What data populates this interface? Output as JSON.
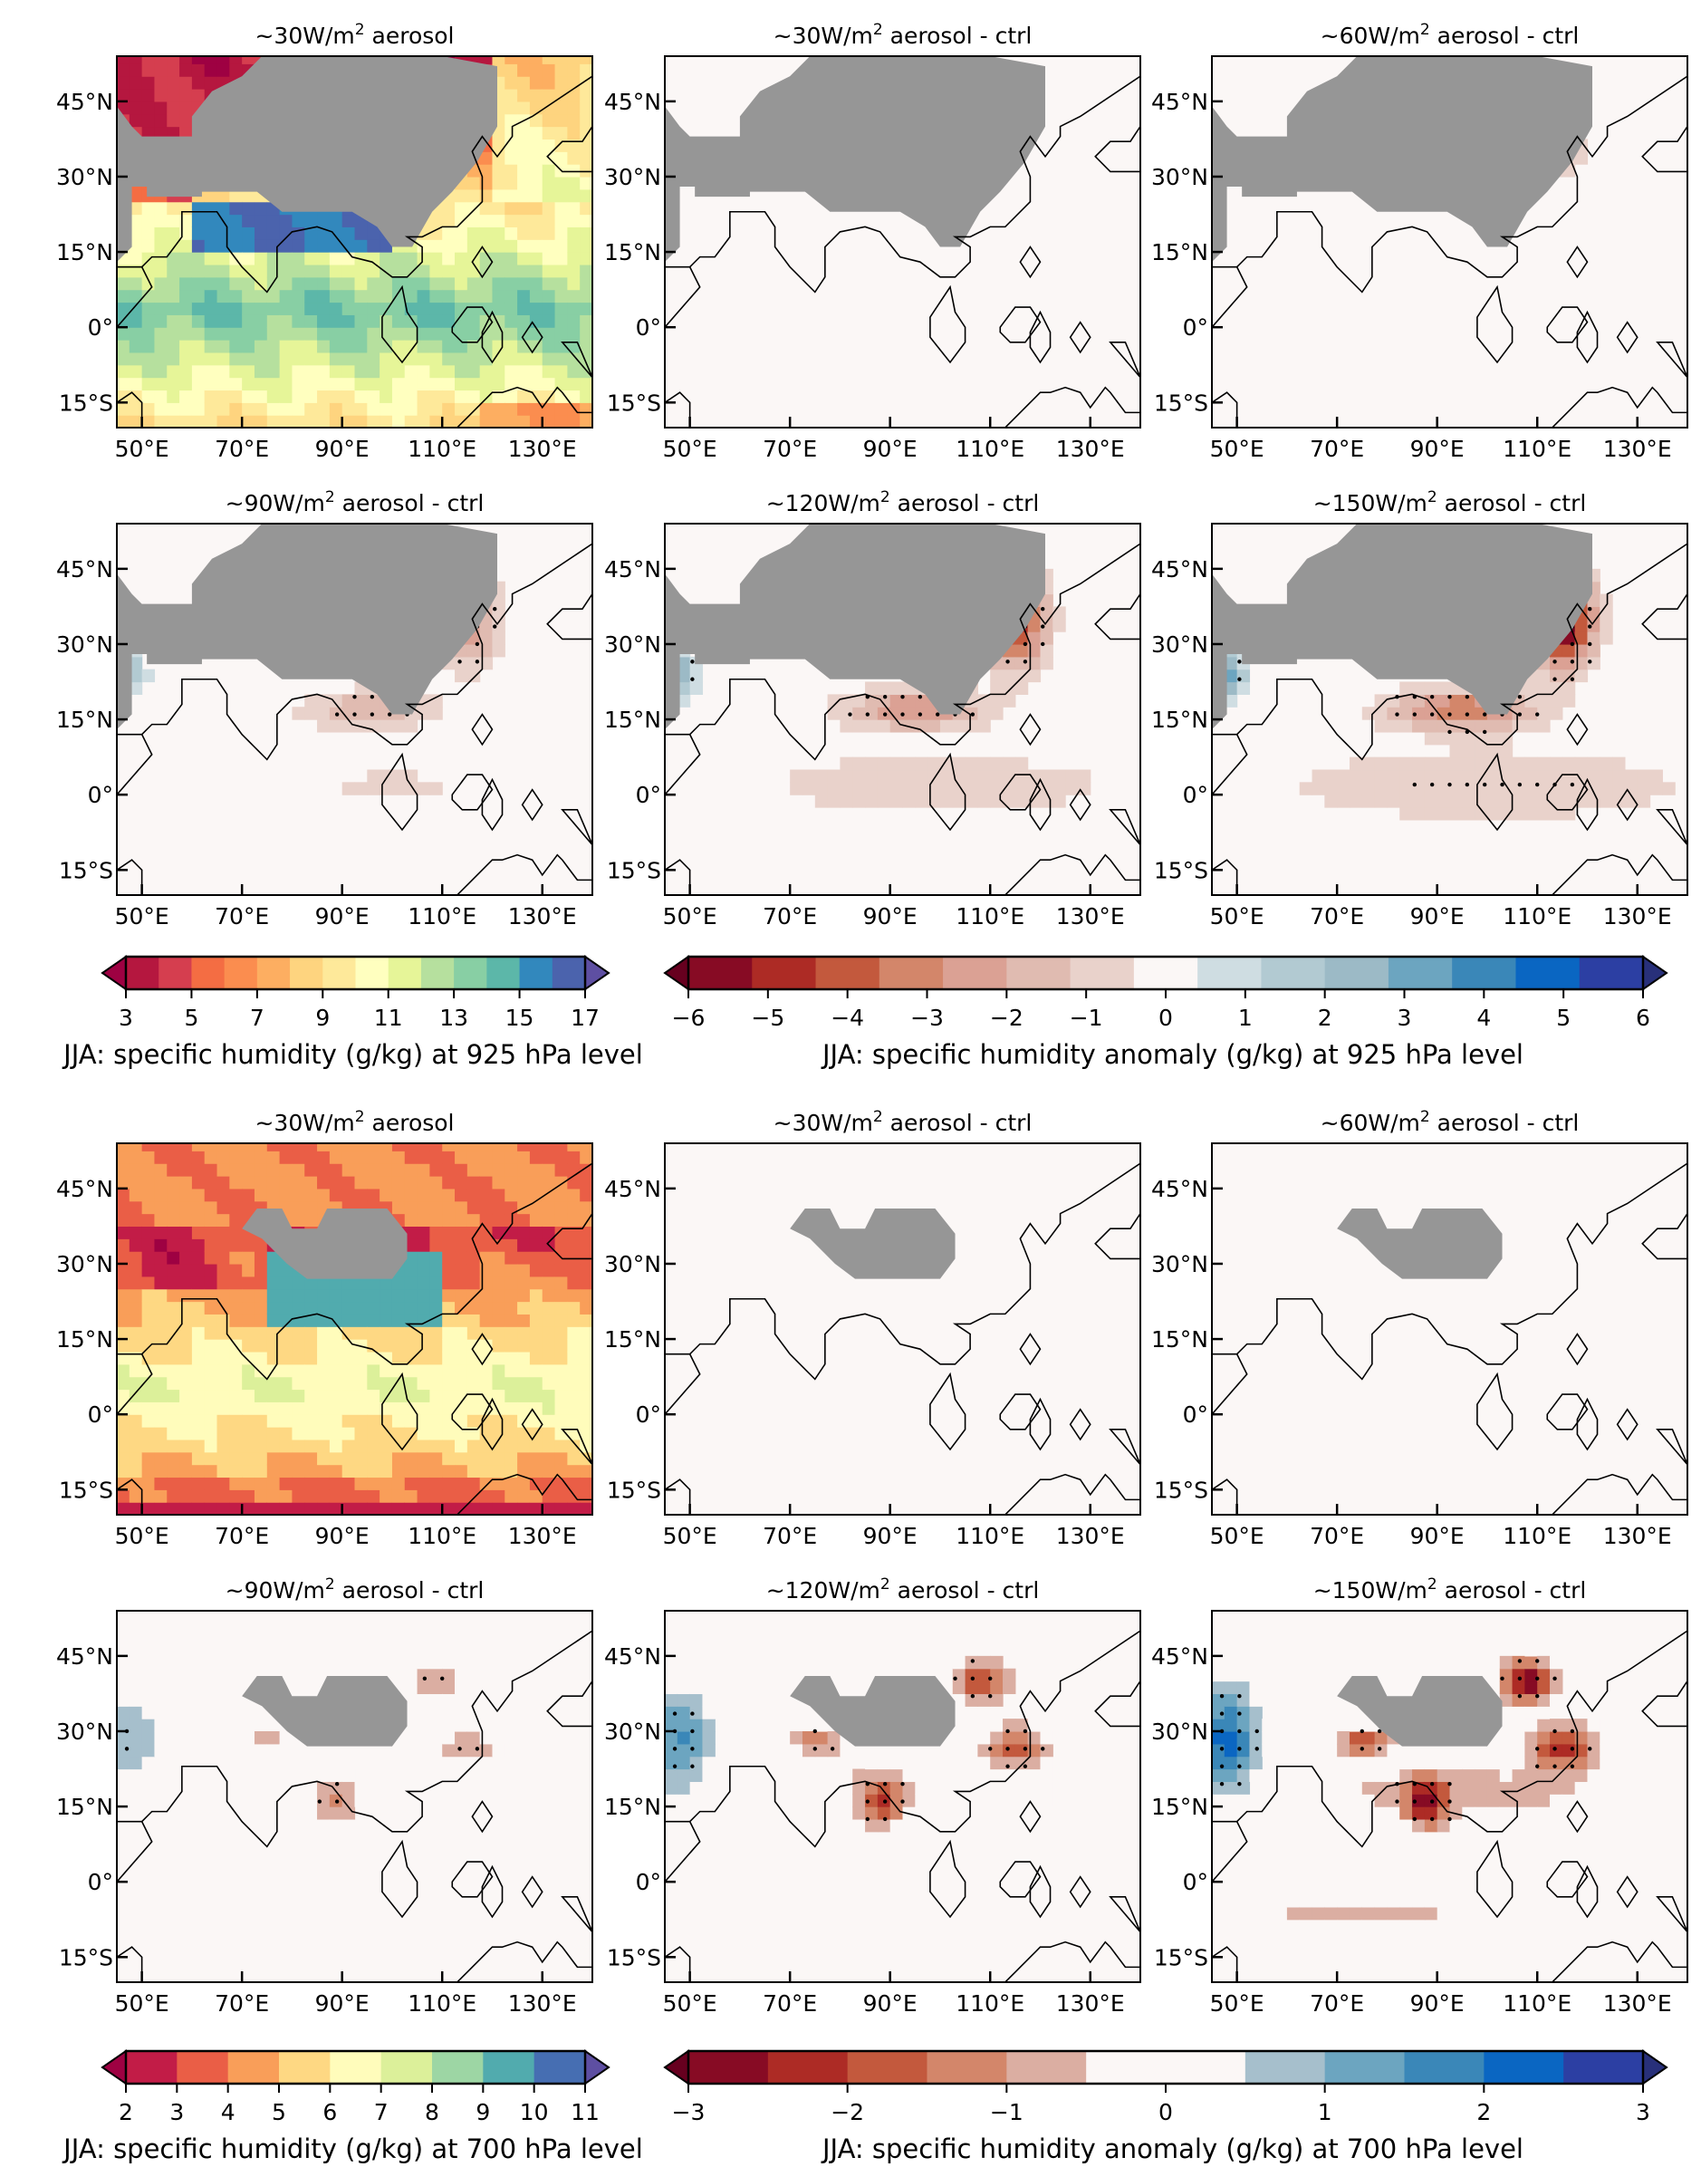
{
  "chart_data": {
    "type": "heatmap",
    "description": "Multi-panel filled-contour maps of JJA specific humidity and anomalies over the Indian Ocean / Asian monsoon region, with coastlines, land mask (grey) and significance stippling.",
    "x_ticks": [
      "50°E",
      "70°E",
      "90°E",
      "110°E",
      "130°E"
    ],
    "x_tick_values": [
      50,
      70,
      90,
      110,
      130
    ],
    "y_ticks": [
      "45°N",
      "30°N",
      "15°N",
      "0°",
      "15°S"
    ],
    "y_tick_values": [
      45,
      30,
      15,
      0,
      -15
    ],
    "xlim": [
      45,
      140
    ],
    "ylim": [
      -20,
      54
    ],
    "sections": [
      {
        "level": "925 hPa",
        "panels": [
          {
            "title_prefix": "~30W/m",
            "title_sup": "2",
            "title_suffix": " aerosol",
            "kind": "absolute"
          },
          {
            "title_prefix": "~30W/m",
            "title_sup": "2",
            "title_suffix": " aerosol - ctrl",
            "kind": "anomaly",
            "intensity": 0.05
          },
          {
            "title_prefix": "~60W/m",
            "title_sup": "2",
            "title_suffix": " aerosol - ctrl",
            "kind": "anomaly",
            "intensity": 0.12
          },
          {
            "title_prefix": "~90W/m",
            "title_sup": "2",
            "title_suffix": " aerosol - ctrl",
            "kind": "anomaly",
            "intensity": 0.45
          },
          {
            "title_prefix": "~120W/m",
            "title_sup": "2",
            "title_suffix": " aerosol - ctrl",
            "kind": "anomaly",
            "intensity": 0.75
          },
          {
            "title_prefix": "~150W/m",
            "title_sup": "2",
            "title_suffix": " aerosol - ctrl",
            "kind": "anomaly",
            "intensity": 1.0
          }
        ],
        "colorbar_abs": {
          "label": "JJA: specific humidity (g/kg) at 925 hPa level",
          "ticks": [
            "3",
            "5",
            "7",
            "9",
            "11",
            "13",
            "15",
            "17"
          ],
          "range": [
            3,
            17
          ],
          "colors": [
            "#9e0142",
            "#b5173f",
            "#d53e4f",
            "#f46d43",
            "#fb8d4f",
            "#fdae61",
            "#fed47f",
            "#fee99a",
            "#ffffbf",
            "#e6f598",
            "#b6e09e",
            "#88cfa4",
            "#5cb7a9",
            "#3288bd",
            "#4b63ad",
            "#5e4fa2"
          ]
        },
        "colorbar_anom": {
          "label": "JJA: specific humidity anomaly (g/kg) at 925 hPa level",
          "ticks": [
            "−6",
            "−5",
            "−4",
            "−3",
            "−2",
            "−1",
            "0",
            "1",
            "2",
            "3",
            "4",
            "5",
            "6"
          ],
          "range": [
            -6,
            6
          ],
          "colors": [
            "#67001f",
            "#870b24",
            "#ad2b25",
            "#c3593d",
            "#d3866a",
            "#dba194",
            "#e0bbb1",
            "#e9d2cb",
            "#fbf7f6",
            "#cfdde2",
            "#b2cad2",
            "#9cbac6",
            "#6ca5c0",
            "#3a87b8",
            "#0a66c2",
            "#2c3fa3",
            "#28307a"
          ]
        }
      },
      {
        "level": "700 hPa",
        "panels": [
          {
            "title_prefix": "~30W/m",
            "title_sup": "2",
            "title_suffix": " aerosol",
            "kind": "absolute"
          },
          {
            "title_prefix": "~30W/m",
            "title_sup": "2",
            "title_suffix": " aerosol - ctrl",
            "kind": "anomaly",
            "intensity": 0.0
          },
          {
            "title_prefix": "~60W/m",
            "title_sup": "2",
            "title_suffix": " aerosol - ctrl",
            "kind": "anomaly",
            "intensity": 0.08
          },
          {
            "title_prefix": "~90W/m",
            "title_sup": "2",
            "title_suffix": " aerosol - ctrl",
            "kind": "anomaly",
            "intensity": 0.35
          },
          {
            "title_prefix": "~120W/m",
            "title_sup": "2",
            "title_suffix": " aerosol - ctrl",
            "kind": "anomaly",
            "intensity": 0.7
          },
          {
            "title_prefix": "~150W/m",
            "title_sup": "2",
            "title_suffix": " aerosol - ctrl",
            "kind": "anomaly",
            "intensity": 1.0
          }
        ],
        "colorbar_abs": {
          "label": "JJA: specific humidity (g/kg) at 700 hPa level",
          "ticks": [
            "2",
            "3",
            "4",
            "5",
            "6",
            "7",
            "8",
            "9",
            "10",
            "11"
          ],
          "range": [
            2,
            11
          ],
          "colors": [
            "#9e0142",
            "#c21c47",
            "#ea5e46",
            "#f99e59",
            "#fed883",
            "#fffcbb",
            "#dcf09a",
            "#9dd6a4",
            "#51abae",
            "#466eb2",
            "#5e4fa2"
          ]
        },
        "colorbar_anom": {
          "label": "JJA: specific humidity anomaly (g/kg) at 700 hPa level",
          "ticks": [
            "−3",
            "−2",
            "−1",
            "0",
            "1",
            "2",
            "3"
          ],
          "range": [
            -3,
            3
          ],
          "colors": [
            "#67001f",
            "#870b24",
            "#ad2b25",
            "#c3593d",
            "#d3866a",
            "#dbaea2",
            "#fbf7f6",
            "#fbf7f6",
            "#a6bfcc",
            "#6ca5c0",
            "#3a87b8",
            "#0a66c2",
            "#2c3fa3",
            "#28307a"
          ]
        }
      }
    ],
    "land_mask_color": "#969696",
    "grid": false
  }
}
